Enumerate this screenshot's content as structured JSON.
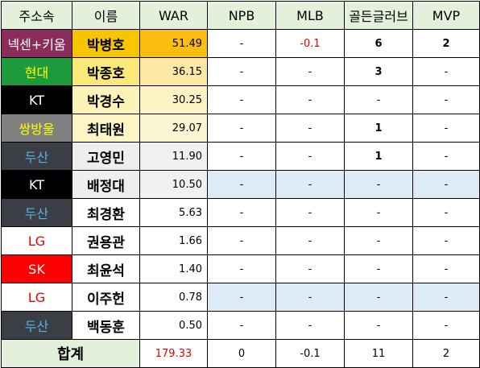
{
  "headers": [
    "주소속",
    "이름",
    "WAR",
    "NPB",
    "MLB",
    "골든글러브",
    "MVP"
  ],
  "rows": [
    {
      "team": "넥센+키움",
      "team_bg": "#8b2c5a",
      "team_fg": "#ffffff",
      "name": "박병호",
      "name_bg": "#f7c400",
      "war": "51.49",
      "war_bg": "#fbbd12",
      "stat_bg": "#ffffff",
      "npb": "-",
      "mlb": "-0.1",
      "mlb_red": true,
      "gg": "6",
      "gg_bold": true,
      "mvp": "2",
      "mvp_bold": true
    },
    {
      "team": "현대",
      "team_bg": "#1f9a3a",
      "team_fg": "#ffff00",
      "name": "박종호",
      "name_bg": "#fbe87a",
      "war": "36.15",
      "war_bg": "#fde9a5",
      "stat_bg": "#ffffff",
      "npb": "-",
      "mlb": "-",
      "mlb_red": false,
      "gg": "3",
      "gg_bold": true,
      "mvp": "-",
      "mvp_bold": false
    },
    {
      "team": "KT",
      "team_bg": "#000000",
      "team_fg": "#ffffff",
      "name": "박경수",
      "name_bg": "#fdf3b8",
      "war": "30.25",
      "war_bg": "#fdf3c4",
      "stat_bg": "#ffffff",
      "npb": "-",
      "mlb": "-",
      "mlb_red": false,
      "gg": "-",
      "gg_bold": false,
      "mvp": "-",
      "mvp_bold": false
    },
    {
      "team": "쌍방울",
      "team_bg": "#808080",
      "team_fg": "#ffff00",
      "name": "최태원",
      "name_bg": "#fdf5c4",
      "war": "29.07",
      "war_bg": "#fdf6d2",
      "stat_bg": "#ffffff",
      "npb": "-",
      "mlb": "-",
      "mlb_red": false,
      "gg": "1",
      "gg_bold": true,
      "mvp": "-",
      "mvp_bold": false
    },
    {
      "team": "두산",
      "team_bg": "#3b3e45",
      "team_fg": "#5ab0e6",
      "name": "고영민",
      "name_bg": "#eeeeee",
      "war": "11.90",
      "war_bg": "#f0f0f0",
      "stat_bg": "#ffffff",
      "npb": "-",
      "mlb": "-",
      "mlb_red": false,
      "gg": "1",
      "gg_bold": true,
      "mvp": "-",
      "mvp_bold": false
    },
    {
      "team": "KT",
      "team_bg": "#000000",
      "team_fg": "#ffffff",
      "name": "배정대",
      "name_bg": "#eeeeee",
      "war": "10.50",
      "war_bg": "#f0f0f0",
      "stat_bg": "#ddebf7",
      "npb": "-",
      "mlb": "-",
      "mlb_red": false,
      "gg": "-",
      "gg_bold": false,
      "mvp": "-",
      "mvp_bold": false
    },
    {
      "team": "두산",
      "team_bg": "#3b3e45",
      "team_fg": "#5ab0e6",
      "name": "최경환",
      "name_bg": "#ffffff",
      "war": "5.63",
      "war_bg": "#ffffff",
      "stat_bg": "#ffffff",
      "npb": "-",
      "mlb": "-",
      "mlb_red": false,
      "gg": "-",
      "gg_bold": false,
      "mvp": "-",
      "mvp_bold": false
    },
    {
      "team": "LG",
      "team_bg": "#ffffff",
      "team_fg": "#e60000",
      "name": "권용관",
      "name_bg": "#ffffff",
      "war": "1.66",
      "war_bg": "#ffffff",
      "stat_bg": "#ffffff",
      "npb": "-",
      "mlb": "-",
      "mlb_red": false,
      "gg": "-",
      "gg_bold": false,
      "mvp": "-",
      "mvp_bold": false
    },
    {
      "team": "SK",
      "team_bg": "#ff0000",
      "team_fg": "#ffffff",
      "name": "최윤석",
      "name_bg": "#ffffff",
      "war": "1.40",
      "war_bg": "#ffffff",
      "stat_bg": "#ffffff",
      "npb": "-",
      "mlb": "-",
      "mlb_red": false,
      "gg": "-",
      "gg_bold": false,
      "mvp": "-",
      "mvp_bold": false
    },
    {
      "team": "LG",
      "team_bg": "#ffffff",
      "team_fg": "#e60000",
      "name": "이주헌",
      "name_bg": "#ffffff",
      "war": "0.78",
      "war_bg": "#ffffff",
      "stat_bg": "#ddebf7",
      "npb": "-",
      "mlb": "-",
      "mlb_red": false,
      "gg": "-",
      "gg_bold": false,
      "mvp": "-",
      "mvp_bold": false
    },
    {
      "team": "두산",
      "team_bg": "#3b3e45",
      "team_fg": "#5ab0e6",
      "name": "백동훈",
      "name_bg": "#ffffff",
      "war": "0.50",
      "war_bg": "#ffffff",
      "stat_bg": "#ffffff",
      "npb": "-",
      "mlb": "-",
      "mlb_red": false,
      "gg": "-",
      "gg_bold": false,
      "mvp": "-",
      "mvp_bold": false
    }
  ],
  "total": {
    "label": "합계",
    "war": "179.33",
    "npb": "0",
    "mlb": "-0.1",
    "gg": "11",
    "mvp": "2"
  },
  "colors": {
    "header_bg": "#e4f1da",
    "negative": "#e60000"
  }
}
